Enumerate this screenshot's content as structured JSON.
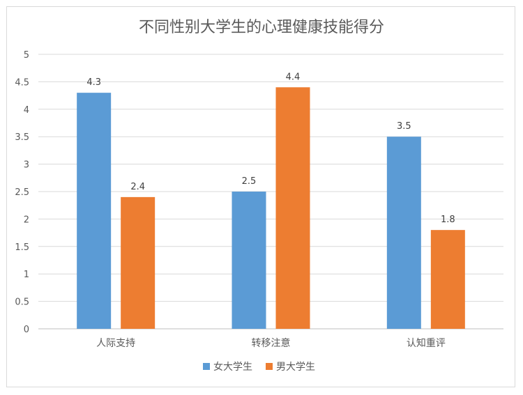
{
  "chart_data": {
    "type": "bar",
    "title": "不同性别大学生的心理健康技能得分",
    "categories": [
      "人际支持",
      "转移注意",
      "认知重评"
    ],
    "series": [
      {
        "name": "女大学生",
        "values": [
          4.3,
          2.5,
          3.5
        ],
        "color": "#5b9bd5"
      },
      {
        "name": "男大学生",
        "values": [
          2.4,
          4.4,
          1.8
        ],
        "color": "#ed7d31"
      }
    ],
    "ylim": [
      0,
      5
    ],
    "yticks": [
      "0",
      "0.5",
      "1",
      "1.5",
      "2",
      "2.5",
      "3",
      "3.5",
      "4",
      "4.5",
      "5"
    ],
    "data_labels": [
      [
        "4.3",
        "2.5",
        "3.5"
      ],
      [
        "2.4",
        "4.4",
        "1.8"
      ]
    ],
    "grid": true,
    "legend_position": "bottom"
  }
}
